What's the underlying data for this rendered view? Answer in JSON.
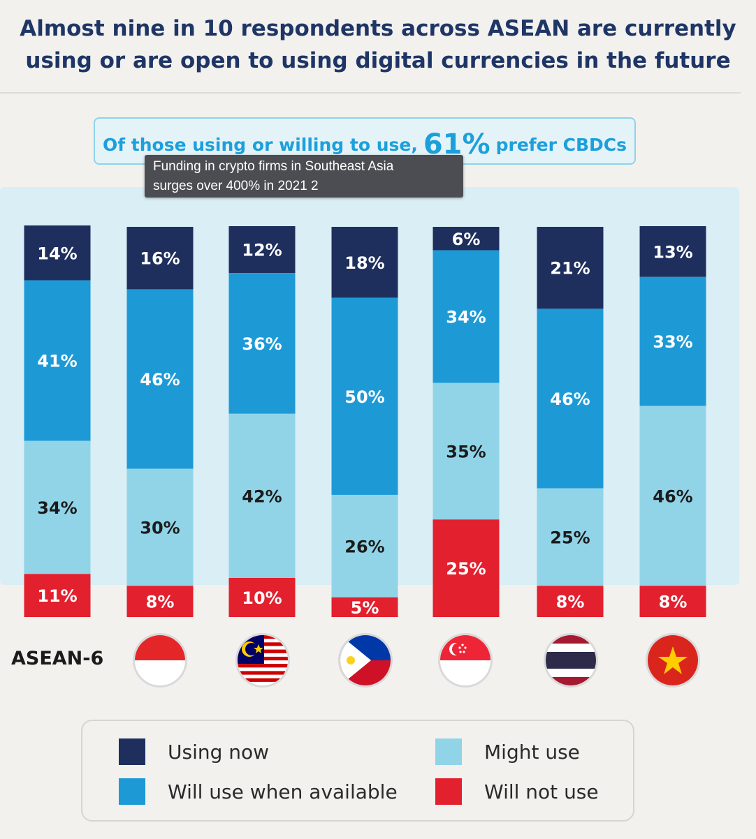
{
  "title": {
    "line1": "Almost nine in 10 respondents across ASEAN are currently",
    "line2": "using or are open to using digital currencies in the future"
  },
  "subtitle": {
    "pre": "Of those using or willing to use,",
    "highlight": "61%",
    "post": "prefer CBDCs"
  },
  "tooltip": {
    "line1": "Funding in crypto firms in Southeast Asia",
    "line2": "surges over 400% in 2021 2"
  },
  "colors": {
    "using_now": "#1e2f5e",
    "will_use": "#1d9ad6",
    "might_use": "#91d4e8",
    "will_not_use": "#e3202e",
    "panel": "#d9eef5",
    "background": "#f2f1ee"
  },
  "chart_data": {
    "type": "bar",
    "stacked": true,
    "orientation": "vertical",
    "categories": [
      "ASEAN-6",
      "Indonesia flag",
      "Malaysia flag",
      "Philippines flag",
      "Singapore flag",
      "Thailand flag",
      "Vietnam flag"
    ],
    "series": [
      {
        "name": "Using now",
        "values": [
          14,
          16,
          12,
          18,
          6,
          21,
          13
        ]
      },
      {
        "name": "Will use when available",
        "values": [
          41,
          46,
          36,
          50,
          34,
          46,
          33
        ]
      },
      {
        "name": "Might use",
        "values": [
          34,
          30,
          42,
          26,
          35,
          25,
          46
        ]
      },
      {
        "name": "Will not use",
        "values": [
          11,
          8,
          10,
          5,
          25,
          8,
          8
        ]
      }
    ],
    "value_format": "%",
    "legend_position": "bottom",
    "grid": false,
    "ylim": [
      0,
      100
    ]
  },
  "x_label_first": "ASEAN-6",
  "flags": [
    "indonesia-flag-icon",
    "malaysia-flag-icon",
    "philippines-flag-icon",
    "singapore-flag-icon",
    "thailand-flag-icon",
    "vietnam-flag-icon"
  ],
  "legend": {
    "using_now": "Using now",
    "will_use": "Will use when available",
    "might_use": "Might use",
    "will_not_use": "Will not use"
  }
}
